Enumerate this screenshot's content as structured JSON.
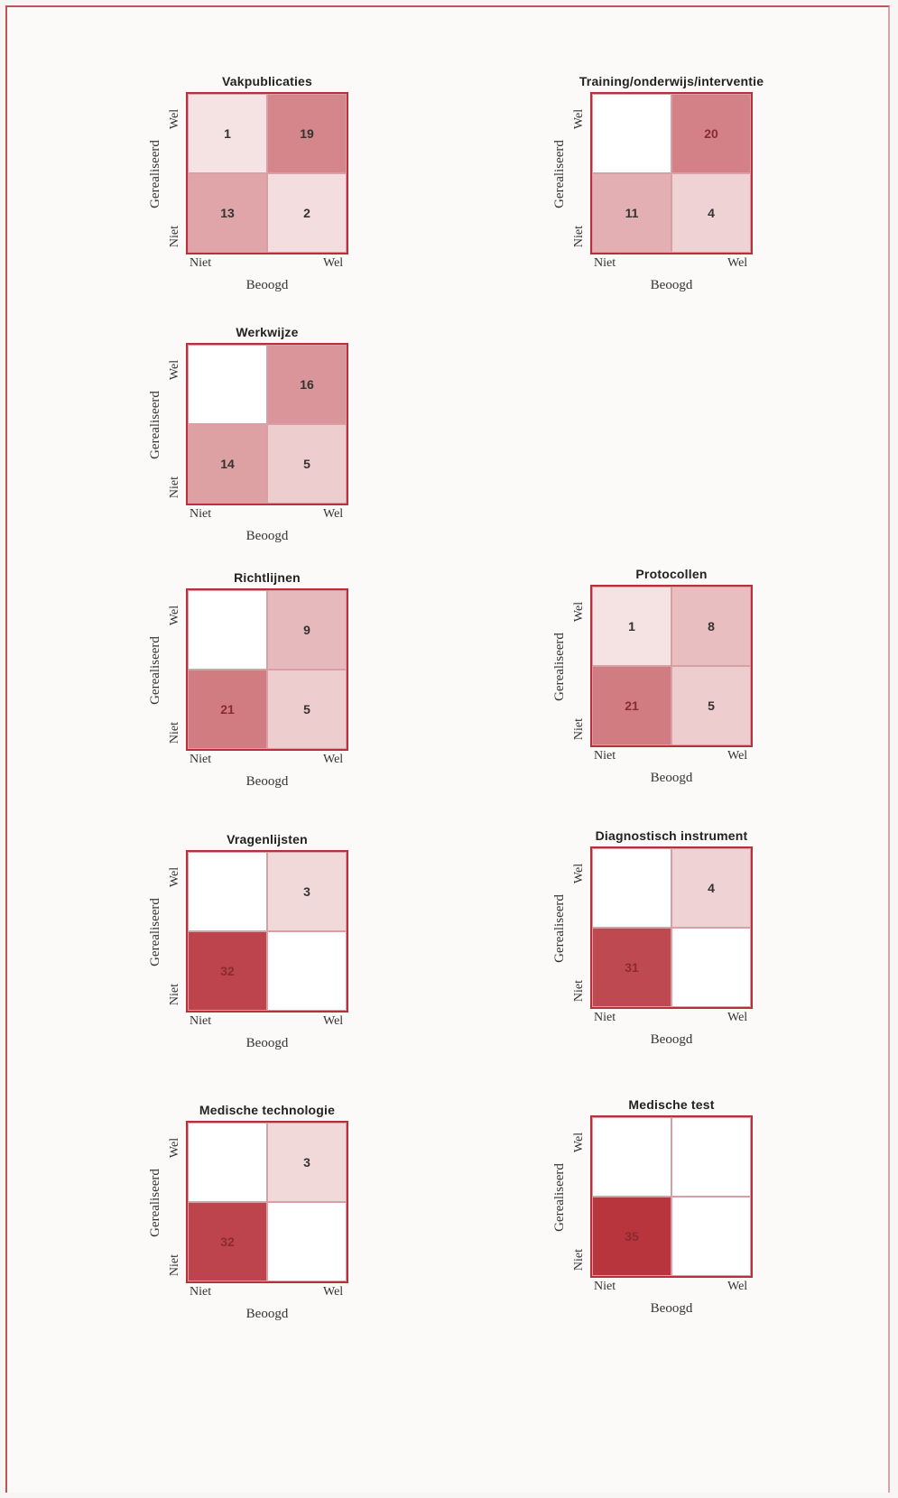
{
  "chart_data": [
    {
      "type": "heatmap",
      "title": "Vakpublicaties",
      "xlabel": "Beoogd",
      "ylabel": "Gerealiseerd",
      "x_categories": [
        "Niet",
        "Wel"
      ],
      "y_categories": [
        "Wel",
        "Niet"
      ],
      "cells": [
        {
          "beoogd": "Niet",
          "gerealiseerd": "Wel",
          "value": 1,
          "label": "1"
        },
        {
          "beoogd": "Wel",
          "gerealiseerd": "Wel",
          "value": 19,
          "label": "19"
        },
        {
          "beoogd": "Niet",
          "gerealiseerd": "Niet",
          "value": 13,
          "label": "13"
        },
        {
          "beoogd": "Wel",
          "gerealiseerd": "Niet",
          "value": 2,
          "label": "2"
        }
      ]
    },
    {
      "type": "heatmap",
      "title": "Training/onderwijs/interventie",
      "xlabel": "Beoogd",
      "ylabel": "Gerealiseerd",
      "x_categories": [
        "Niet",
        "Wel"
      ],
      "y_categories": [
        "Wel",
        "Niet"
      ],
      "cells": [
        {
          "beoogd": "Niet",
          "gerealiseerd": "Wel",
          "value": 0,
          "label": ""
        },
        {
          "beoogd": "Wel",
          "gerealiseerd": "Wel",
          "value": 20,
          "label": "20"
        },
        {
          "beoogd": "Niet",
          "gerealiseerd": "Niet",
          "value": 11,
          "label": "11"
        },
        {
          "beoogd": "Wel",
          "gerealiseerd": "Niet",
          "value": 4,
          "label": "4"
        }
      ]
    },
    {
      "type": "heatmap",
      "title": "Werkwijze",
      "xlabel": "Beoogd",
      "ylabel": "Gerealiseerd",
      "x_categories": [
        "Niet",
        "Wel"
      ],
      "y_categories": [
        "Wel",
        "Niet"
      ],
      "cells": [
        {
          "beoogd": "Niet",
          "gerealiseerd": "Wel",
          "value": 0,
          "label": ""
        },
        {
          "beoogd": "Wel",
          "gerealiseerd": "Wel",
          "value": 16,
          "label": "16"
        },
        {
          "beoogd": "Niet",
          "gerealiseerd": "Niet",
          "value": 14,
          "label": "14"
        },
        {
          "beoogd": "Wel",
          "gerealiseerd": "Niet",
          "value": 5,
          "label": "5"
        }
      ]
    },
    {
      "type": "heatmap",
      "title": "Richtlijnen",
      "xlabel": "Beoogd",
      "ylabel": "Gerealiseerd",
      "x_categories": [
        "Niet",
        "Wel"
      ],
      "y_categories": [
        "Wel",
        "Niet"
      ],
      "cells": [
        {
          "beoogd": "Niet",
          "gerealiseerd": "Wel",
          "value": 0,
          "label": ""
        },
        {
          "beoogd": "Wel",
          "gerealiseerd": "Wel",
          "value": 9,
          "label": "9"
        },
        {
          "beoogd": "Niet",
          "gerealiseerd": "Niet",
          "value": 21,
          "label": "21"
        },
        {
          "beoogd": "Wel",
          "gerealiseerd": "Niet",
          "value": 5,
          "label": "5"
        }
      ]
    },
    {
      "type": "heatmap",
      "title": "Protocollen",
      "xlabel": "Beoogd",
      "ylabel": "Gerealiseerd",
      "x_categories": [
        "Niet",
        "Wel"
      ],
      "y_categories": [
        "Wel",
        "Niet"
      ],
      "cells": [
        {
          "beoogd": "Niet",
          "gerealiseerd": "Wel",
          "value": 1,
          "label": "1"
        },
        {
          "beoogd": "Wel",
          "gerealiseerd": "Wel",
          "value": 8,
          "label": "8"
        },
        {
          "beoogd": "Niet",
          "gerealiseerd": "Niet",
          "value": 21,
          "label": "21"
        },
        {
          "beoogd": "Wel",
          "gerealiseerd": "Niet",
          "value": 5,
          "label": "5"
        }
      ]
    },
    {
      "type": "heatmap",
      "title": "Vragenlijsten",
      "xlabel": "Beoogd",
      "ylabel": "Gerealiseerd",
      "x_categories": [
        "Niet",
        "Wel"
      ],
      "y_categories": [
        "Wel",
        "Niet"
      ],
      "cells": [
        {
          "beoogd": "Niet",
          "gerealiseerd": "Wel",
          "value": 0,
          "label": ""
        },
        {
          "beoogd": "Wel",
          "gerealiseerd": "Wel",
          "value": 3,
          "label": "3"
        },
        {
          "beoogd": "Niet",
          "gerealiseerd": "Niet",
          "value": 32,
          "label": "32"
        },
        {
          "beoogd": "Wel",
          "gerealiseerd": "Niet",
          "value": 0,
          "label": ""
        }
      ]
    },
    {
      "type": "heatmap",
      "title": "Diagnostisch instrument",
      "xlabel": "Beoogd",
      "ylabel": "Gerealiseerd",
      "x_categories": [
        "Niet",
        "Wel"
      ],
      "y_categories": [
        "Wel",
        "Niet"
      ],
      "cells": [
        {
          "beoogd": "Niet",
          "gerealiseerd": "Wel",
          "value": 0,
          "label": ""
        },
        {
          "beoogd": "Wel",
          "gerealiseerd": "Wel",
          "value": 4,
          "label": "4"
        },
        {
          "beoogd": "Niet",
          "gerealiseerd": "Niet",
          "value": 31,
          "label": "31"
        },
        {
          "beoogd": "Wel",
          "gerealiseerd": "Niet",
          "value": 0,
          "label": ""
        }
      ]
    },
    {
      "type": "heatmap",
      "title": "Medische technologie",
      "xlabel": "Beoogd",
      "ylabel": "Gerealiseerd",
      "x_categories": [
        "Niet",
        "Wel"
      ],
      "y_categories": [
        "Wel",
        "Niet"
      ],
      "cells": [
        {
          "beoogd": "Niet",
          "gerealiseerd": "Wel",
          "value": 0,
          "label": ""
        },
        {
          "beoogd": "Wel",
          "gerealiseerd": "Wel",
          "value": 3,
          "label": "3"
        },
        {
          "beoogd": "Niet",
          "gerealiseerd": "Niet",
          "value": 32,
          "label": "32"
        },
        {
          "beoogd": "Wel",
          "gerealiseerd": "Niet",
          "value": 0,
          "label": ""
        }
      ]
    },
    {
      "type": "heatmap",
      "title": "Medische test",
      "xlabel": "Beoogd",
      "ylabel": "Gerealiseerd",
      "x_categories": [
        "Niet",
        "Wel"
      ],
      "y_categories": [
        "Wel",
        "Niet"
      ],
      "cells": [
        {
          "beoogd": "Niet",
          "gerealiseerd": "Wel",
          "value": 0,
          "label": ""
        },
        {
          "beoogd": "Wel",
          "gerealiseerd": "Wel",
          "value": 0,
          "label": ""
        },
        {
          "beoogd": "Niet",
          "gerealiseerd": "Niet",
          "value": 35,
          "label": "35"
        },
        {
          "beoogd": "Wel",
          "gerealiseerd": "Niet",
          "value": 0,
          "label": ""
        }
      ]
    }
  ],
  "colors": {
    "heat_low": "#ffffff",
    "heat_high": "#b8353d",
    "grid_border": "#b8303a",
    "page_border": "#c0545a"
  }
}
